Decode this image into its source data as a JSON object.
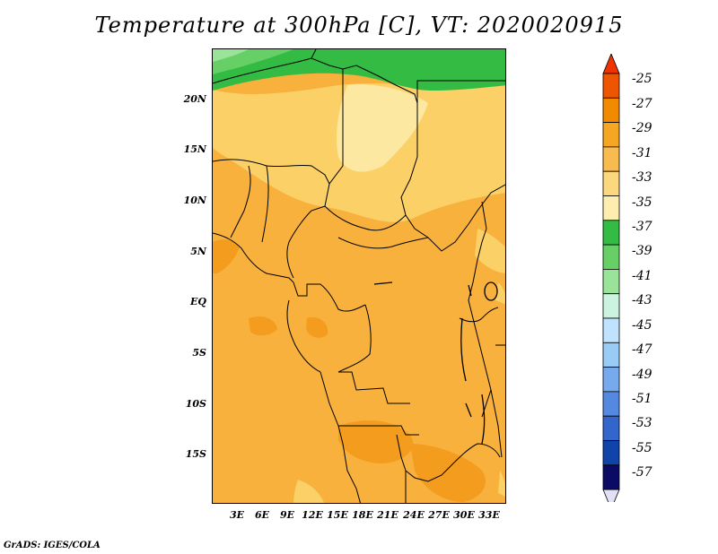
{
  "title": "Temperature at 300hPa [C], VT: 2020020915",
  "credit": "GrADS: IGES/COLA",
  "lat_ticks": [
    "20N",
    "15N",
    "10N",
    "5N",
    "EQ",
    "5S",
    "10S",
    "15S"
  ],
  "lon_ticks": [
    "3E",
    "6E",
    "9E",
    "12E",
    "15E",
    "18E",
    "21E",
    "24E",
    "27E",
    "30E",
    "33E"
  ],
  "colorbar": {
    "labels": [
      "-25",
      "-27",
      "-29",
      "-31",
      "-33",
      "-35",
      "-37",
      "-39",
      "-41",
      "-43",
      "-45",
      "-47",
      "-49",
      "-51",
      "-53",
      "-55",
      "-57"
    ],
    "colors": [
      "#ee5500",
      "#f28a00",
      "#f5a623",
      "#f7bb4f",
      "#fbd77e",
      "#fdeeb0",
      "#33bb44",
      "#66d066",
      "#99e499",
      "#ccf2e0",
      "#bfe2ff",
      "#99ccf5",
      "#77aaec",
      "#5588e0",
      "#3366cc",
      "#1144aa",
      "#0b0b66"
    ],
    "over_color": "#ee3300",
    "under_color": "#e0e0f6"
  },
  "colors": {
    "hot": "#f39c1e",
    "warm": "#f7b13c",
    "mild": "#fad067",
    "cool": "#fde8a2",
    "green_dark": "#33bb44",
    "green_mid": "#66d066",
    "green_light": "#99e499",
    "boundary": "#000000"
  }
}
